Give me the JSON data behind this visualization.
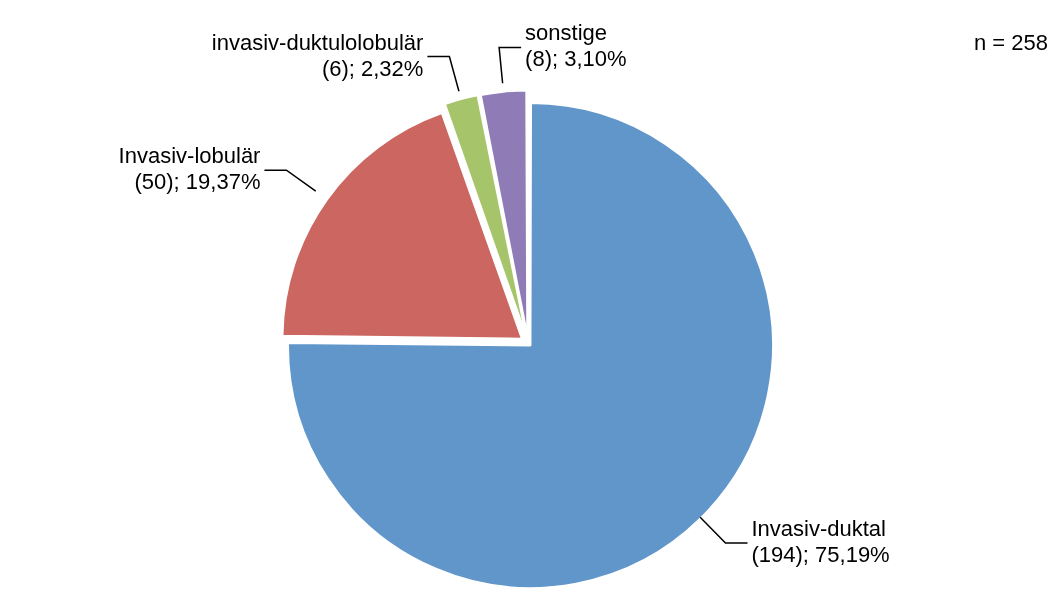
{
  "chart_data": {
    "type": "pie",
    "categories": [
      "Invasiv-duktal",
      "Invasiv-lobulär",
      "invasiv-duktulolobulär",
      "sonstige"
    ],
    "values": [
      194,
      50,
      6,
      8
    ],
    "value_labels": [
      "(194); 75,19%",
      "(50); 19,37%",
      "(6); 2,32%",
      "(8); 3,10%"
    ],
    "colors": [
      "#6096c9",
      "#cc6660",
      "#a6c46a",
      "#8f7bb5"
    ],
    "annotations": [
      "n = 258"
    ],
    "legend": false
  }
}
